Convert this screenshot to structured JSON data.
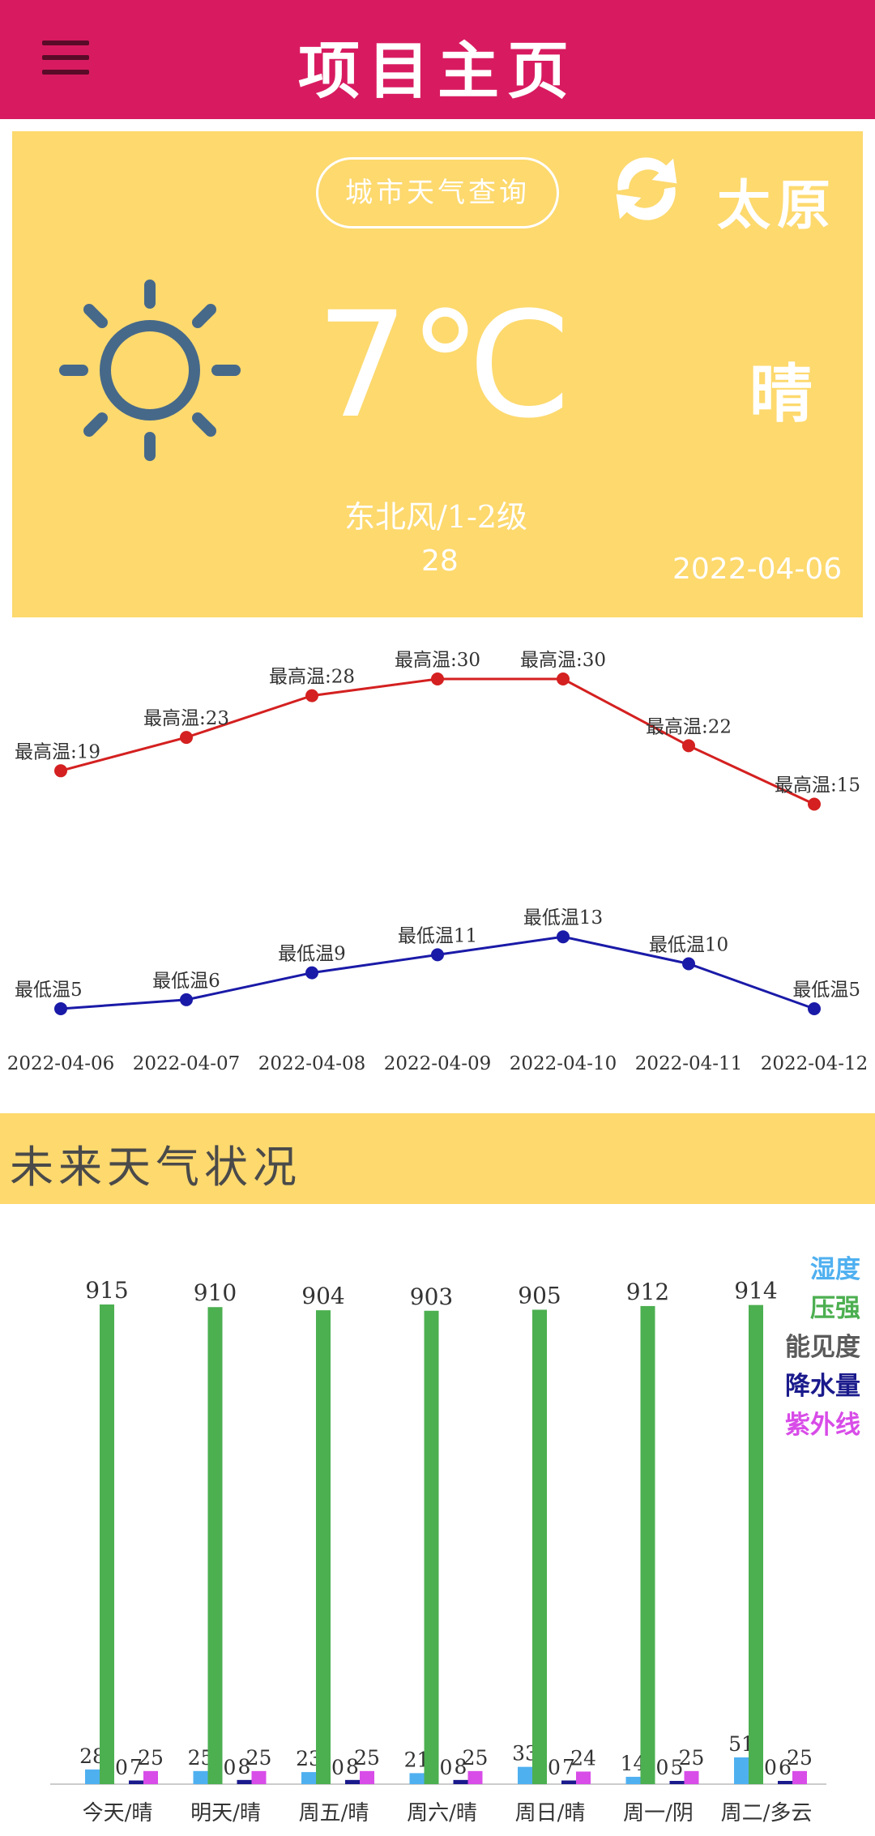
{
  "header": {
    "title": "项目主页"
  },
  "weather": {
    "query_button": "城市天气查询",
    "city": "太原",
    "temperature": "7℃",
    "condition": "晴",
    "wind": "东北风/1-2级",
    "humidity": "28",
    "date": "2022-04-06",
    "icons": {
      "refresh": "refresh-icon",
      "sun": "sun-icon"
    }
  },
  "colors": {
    "topbar": "#d81b60",
    "card": "#fdd96e",
    "high_line": "#d42020",
    "low_line": "#1a1aa8",
    "humidity": "#4fb0f0",
    "pressure": "#4caf50",
    "visibility": "#5b5b5b",
    "precipitation": "#1a1a8c",
    "uv": "#d84ce8"
  },
  "temp_chart": {
    "type": "line",
    "dates": [
      "2022-04-06",
      "2022-04-07",
      "2022-04-08",
      "2022-04-09",
      "2022-04-10",
      "2022-04-11",
      "2022-04-12"
    ],
    "high_prefix": "最高温:",
    "low_prefix": "最低温",
    "high": [
      19,
      23,
      28,
      30,
      30,
      22,
      15
    ],
    "low": [
      5,
      6,
      9,
      11,
      13,
      10,
      5
    ]
  },
  "future": {
    "title": "未来天气状况"
  },
  "chart_data": {
    "type": "bar",
    "categories": [
      "今天/晴",
      "明天/晴",
      "周五/晴",
      "周六/晴",
      "周日/晴",
      "周一/阴",
      "周二/多云"
    ],
    "series": [
      {
        "name": "湿度",
        "values": [
          28,
          25,
          23,
          21,
          33,
          14,
          51
        ],
        "labels": [
          "28",
          "25",
          "23",
          "21",
          "33",
          "14",
          "51"
        ]
      },
      {
        "name": "压强",
        "values": [
          915,
          910,
          904,
          903,
          905,
          912,
          914
        ],
        "labels": [
          "915",
          "910",
          "904",
          "903",
          "905",
          "912",
          "914"
        ]
      },
      {
        "name": "能见度",
        "values": [
          0,
          0,
          0,
          0,
          0,
          0,
          0
        ],
        "labels": [
          "0",
          "0",
          "0",
          "0",
          "0",
          "0",
          "0"
        ]
      },
      {
        "name": "降水量",
        "values": [
          7,
          8,
          8,
          8,
          7,
          5,
          6
        ],
        "labels": [
          "7",
          "8",
          "8",
          "8",
          "7",
          "5",
          "6"
        ]
      },
      {
        "name": "紫外线",
        "values": [
          25,
          25,
          25,
          25,
          24,
          25,
          25
        ],
        "labels": [
          "25",
          "25",
          "25",
          "25",
          "24",
          "25",
          "25"
        ]
      }
    ],
    "legend_position": "top-right"
  }
}
